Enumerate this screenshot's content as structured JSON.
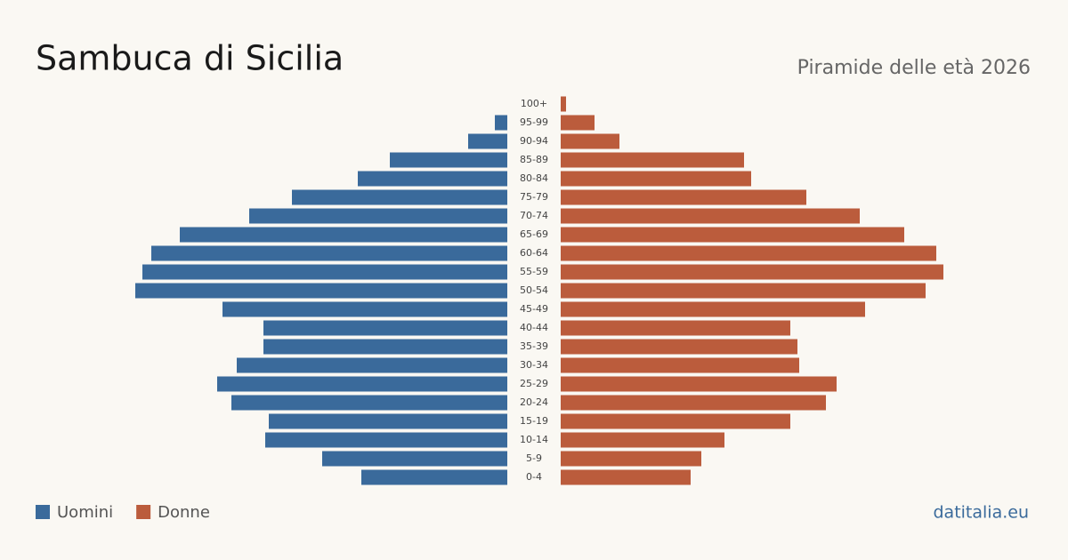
{
  "chart_data": {
    "type": "pyramid",
    "title": "Sambuca di Sicilia",
    "subtitle": "Piramide delle età 2026",
    "source": "datitalia.eu",
    "categories": [
      "100+",
      "95-99",
      "90-94",
      "85-89",
      "80-84",
      "75-79",
      "70-74",
      "65-69",
      "60-64",
      "55-59",
      "50-54",
      "45-49",
      "40-44",
      "35-39",
      "30-34",
      "25-29",
      "20-24",
      "15-19",
      "10-14",
      "5-9",
      "0-4"
    ],
    "series": [
      {
        "name": "Uomini",
        "color": "#3a6a9b",
        "values": [
          0,
          7,
          22,
          66,
          84,
          121,
          145,
          184,
          200,
          205,
          209,
          160,
          137,
          137,
          152,
          163,
          155,
          134,
          136,
          104,
          82
        ]
      },
      {
        "name": "Donne",
        "color": "#bb5c3c",
        "values": [
          3,
          19,
          33,
          103,
          107,
          138,
          168,
          193,
          211,
          215,
          205,
          171,
          129,
          133,
          134,
          155,
          149,
          129,
          92,
          79,
          73
        ]
      }
    ]
  }
}
